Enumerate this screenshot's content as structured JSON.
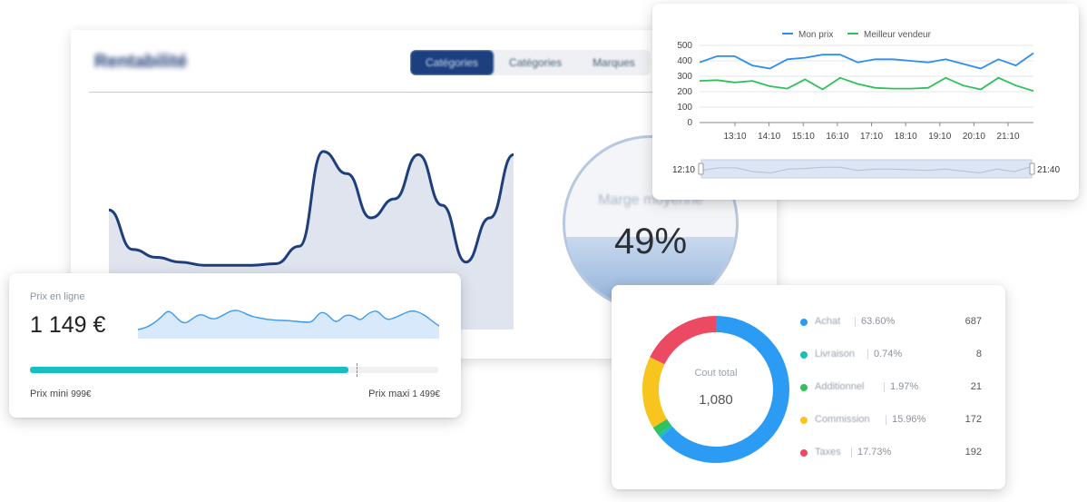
{
  "rentabilite": {
    "title": "Rentabilité",
    "tabs": [
      "Catégories",
      "Catégories",
      "Marques"
    ],
    "gauge_label": "Marge moyenne",
    "gauge_value": "49%",
    "gauge_level": 0.42
  },
  "price_panel": {
    "label": "Prix en ligne",
    "value": "1 149 €",
    "bar_fill_fraction": 0.78,
    "marker_fraction": 0.8,
    "min_label": "Prix mini",
    "min_value": "999€",
    "max_label": "Prix maxi",
    "max_value": "1 499€"
  },
  "cost_donut": {
    "center_label": "Cout total",
    "center_value": "1,080",
    "items": [
      {
        "name": "Achat",
        "pct": "63.60%",
        "value": "687",
        "color": "#2c9bf3"
      },
      {
        "name": "Livraison",
        "pct": "0.74%",
        "value": "8",
        "color": "#1bbfb9"
      },
      {
        "name": "Additionnel",
        "pct": "1.97%",
        "value": "21",
        "color": "#33c060"
      },
      {
        "name": "Commission",
        "pct": "15.96%",
        "value": "172",
        "color": "#f7c51e"
      },
      {
        "name": "Taxes",
        "pct": "17.73%",
        "value": "192",
        "color": "#ec4a63"
      }
    ]
  },
  "chart_data": [
    {
      "type": "line",
      "title": "",
      "series": [
        {
          "name": "Mon prix",
          "color": "#2c8ef0",
          "values": [
            390,
            430,
            430,
            370,
            350,
            410,
            420,
            440,
            440,
            390,
            410,
            410,
            400,
            390,
            410,
            380,
            350,
            410,
            370,
            450
          ]
        },
        {
          "name": "Meilleur vendeur",
          "color": "#2ec05a",
          "values": [
            270,
            275,
            260,
            270,
            235,
            220,
            280,
            215,
            290,
            250,
            225,
            220,
            220,
            225,
            290,
            240,
            215,
            290,
            240,
            205
          ]
        }
      ],
      "x_tick_labels": [
        "13:10",
        "14:10",
        "15:10",
        "16:10",
        "17:10",
        "18:10",
        "19:10",
        "20:10",
        "21:10"
      ],
      "ylim": [
        0,
        500
      ],
      "y_ticks": [
        0,
        100,
        200,
        300,
        400,
        500
      ],
      "legend": "top",
      "range_start": "12:10",
      "range_end": "21:40"
    },
    {
      "type": "area",
      "title": "",
      "values": [
        0.55,
        0.3,
        0.25,
        0.22,
        0.2,
        0.2,
        0.2,
        0.21,
        0.32,
        0.92,
        0.78,
        0.5,
        0.62,
        0.9,
        0.58,
        0.22,
        0.5,
        0.9
      ]
    }
  ]
}
